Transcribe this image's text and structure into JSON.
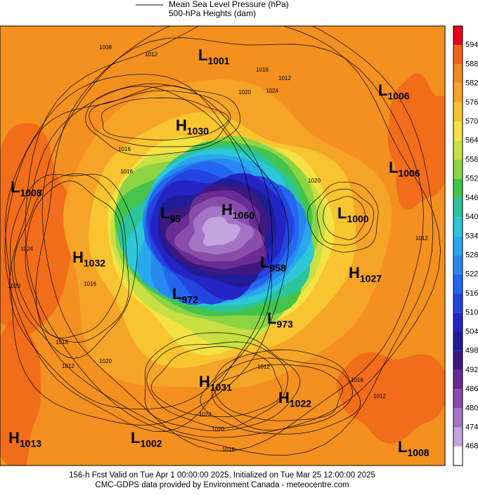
{
  "header": {
    "legend_line_text": "Mean Sea Level Pressure (hPa)",
    "legend_fill_text": "500-hPa Heights (dam)"
  },
  "footer": {
    "line1": "156-h Fcst Valid on Tue Apr  1 00:00:00 2025, Initialized on Tue Mar 25 12:00:00 2025",
    "line2": "CMC-GDPS data provided by Environment Canada - meteocentre.com"
  },
  "colorbar": {
    "top_color": "#e8001c",
    "bottom_color": "#ffffff",
    "levels": [
      {
        "label": "594",
        "color": "#f06418"
      },
      {
        "label": "588",
        "color": "#f38a1e"
      },
      {
        "label": "582",
        "color": "#f6a428"
      },
      {
        "label": "576",
        "color": "#f8c430"
      },
      {
        "label": "570",
        "color": "#f4e244"
      },
      {
        "label": "564",
        "color": "#c8e044"
      },
      {
        "label": "558",
        "color": "#8cd444"
      },
      {
        "label": "552",
        "color": "#44c44c"
      },
      {
        "label": "546",
        "color": "#2cc49c"
      },
      {
        "label": "540",
        "color": "#2cc8d8"
      },
      {
        "label": "534",
        "color": "#28a8ec"
      },
      {
        "label": "528",
        "color": "#2888f0"
      },
      {
        "label": "522",
        "color": "#2466f0"
      },
      {
        "label": "516",
        "color": "#2444e0"
      },
      {
        "label": "510",
        "color": "#2424c4"
      },
      {
        "label": "504",
        "color": "#201c98"
      },
      {
        "label": "498",
        "color": "#3c1880"
      },
      {
        "label": "492",
        "color": "#682c94"
      },
      {
        "label": "486",
        "color": "#8a4caa"
      },
      {
        "label": "480",
        "color": "#a474c4"
      },
      {
        "label": "474",
        "color": "#c4a4dc"
      },
      {
        "label": "468",
        "color": "#e4d4f0"
      }
    ]
  },
  "centers": [
    {
      "letter": "L",
      "value": "1001"
    },
    {
      "letter": "L",
      "value": "1006"
    },
    {
      "letter": "H",
      "value": "1030"
    },
    {
      "letter": "L",
      "value": "1006"
    },
    {
      "letter": "L",
      "value": "1008"
    },
    {
      "letter": "H",
      "value": "1060"
    },
    {
      "letter": "L",
      "value": "1000"
    },
    {
      "letter": "L",
      "value": "95"
    },
    {
      "letter": "H",
      "value": "1032"
    },
    {
      "letter": "L",
      "value": "958"
    },
    {
      "letter": "H",
      "value": "1027"
    },
    {
      "letter": "L",
      "value": "972"
    },
    {
      "letter": "L",
      "value": "973"
    },
    {
      "letter": "H",
      "value": "1031"
    },
    {
      "letter": "H",
      "value": "1022"
    },
    {
      "letter": "H",
      "value": "1013"
    },
    {
      "letter": "L",
      "value": "1002"
    },
    {
      "letter": "L",
      "value": "1008"
    }
  ],
  "isobar_labels": [
    "1008",
    "1012",
    "1016",
    "1020",
    "1024",
    "1016",
    "1016",
    "1024",
    "1020",
    "1016",
    "1012",
    "1020",
    "1016",
    "1012",
    "1024",
    "1020",
    "1016",
    "1016",
    "1012",
    "1012",
    "1020",
    "1012"
  ]
}
